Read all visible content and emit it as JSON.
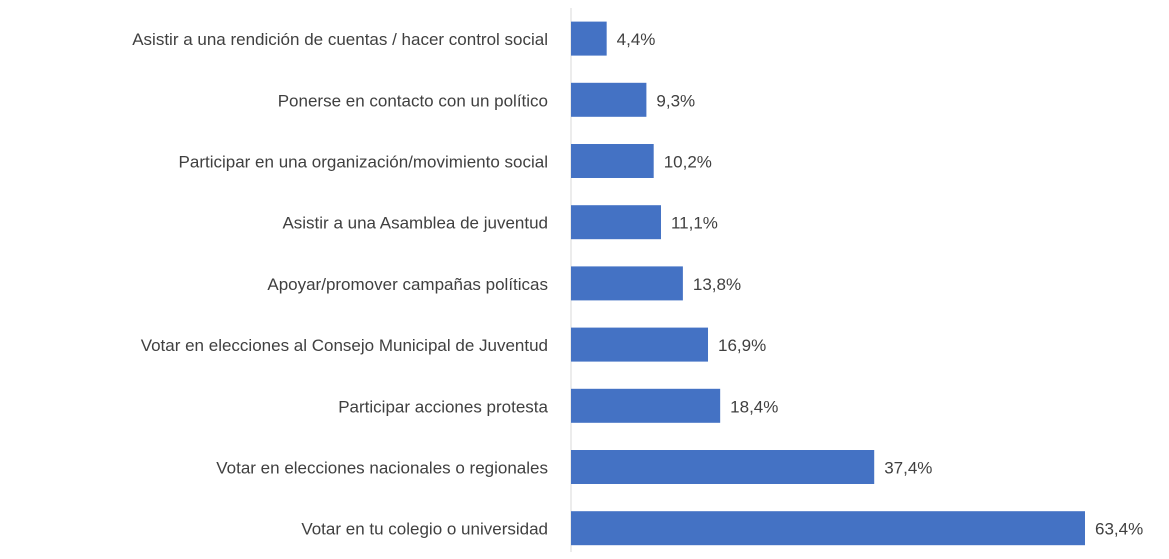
{
  "chart_data": {
    "type": "bar",
    "orientation": "horizontal",
    "categories": [
      "Asistir a una rendición de cuentas / hacer control social",
      "Ponerse en contacto con un político",
      "Participar en una organización/movimiento social",
      "Asistir a una Asamblea de juventud",
      "Apoyar/promover campañas políticas",
      "Votar en elecciones al Consejo Municipal de Juventud",
      "Participar acciones protesta",
      "Votar en elecciones nacionales o regionales",
      "Votar en tu colegio o universidad"
    ],
    "values": [
      4.4,
      9.3,
      10.2,
      11.1,
      13.8,
      16.9,
      18.4,
      37.4,
      63.4
    ],
    "value_labels": [
      "4,4%",
      "9,3%",
      "10,2%",
      "11,1%",
      "13,8%",
      "16,9%",
      "18,4%",
      "37,4%",
      "63,4%"
    ],
    "color": "#4472c4"
  }
}
